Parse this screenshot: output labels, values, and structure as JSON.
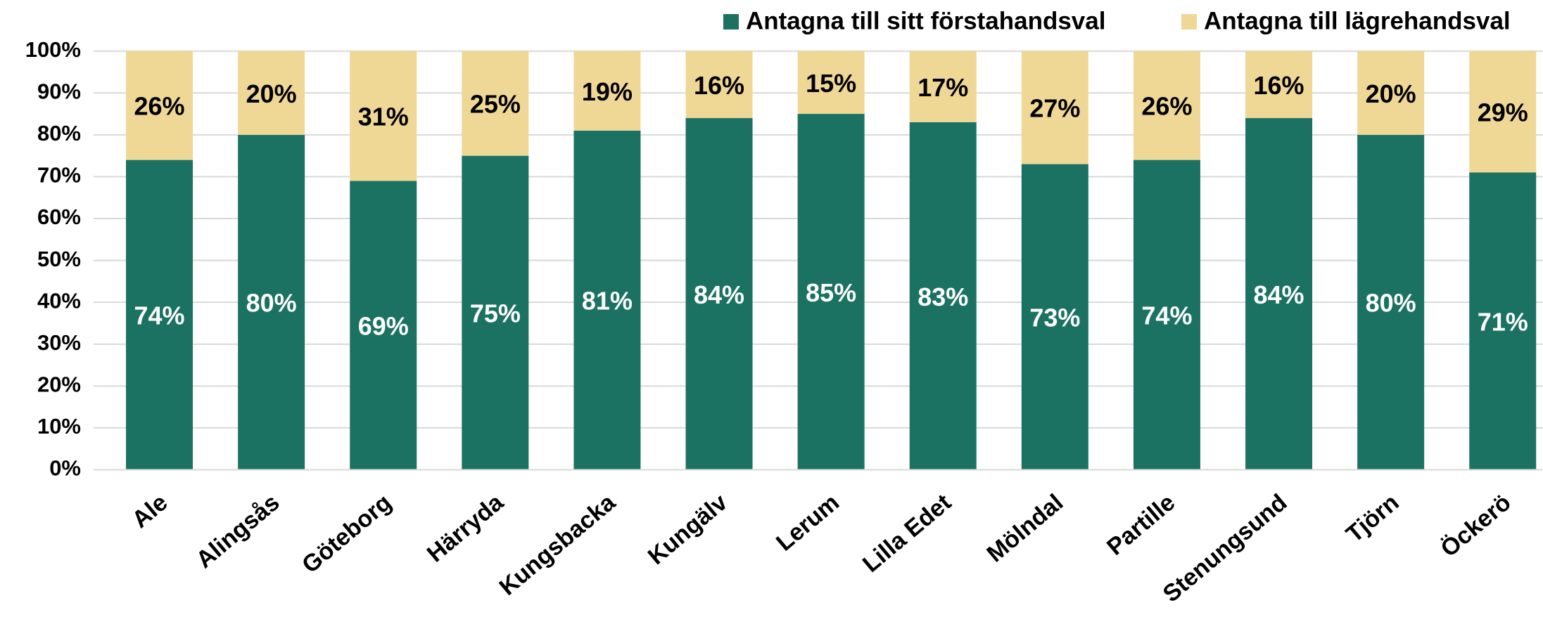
{
  "chart_data": {
    "type": "stacked_bar",
    "categories": [
      "Ale",
      "Alingsås",
      "Göteborg",
      "Härryda",
      "Kungsbacka",
      "Kungälv",
      "Lerum",
      "Lilla Edet",
      "Mölndal",
      "Partille",
      "Stenungsund",
      "Tjörn",
      "Öckerö"
    ],
    "series": [
      {
        "name": "Antagna till sitt förstahandsval",
        "color": "#1c7262",
        "values": [
          74,
          80,
          69,
          75,
          81,
          84,
          85,
          83,
          73,
          74,
          84,
          80,
          71
        ],
        "value_labels": [
          "74%",
          "80%",
          "69%",
          "75%",
          "81%",
          "84%",
          "85%",
          "83%",
          "73%",
          "74%",
          "84%",
          "80%",
          "71%"
        ]
      },
      {
        "name": "Antagna till lägrehandsval",
        "color": "#efd796",
        "values": [
          26,
          20,
          31,
          25,
          19,
          16,
          15,
          17,
          27,
          26,
          16,
          20,
          29
        ],
        "value_labels": [
          "26%",
          "20%",
          "31%",
          "25%",
          "19%",
          "16%",
          "15%",
          "17%",
          "27%",
          "26%",
          "16%",
          "20%",
          "29%"
        ]
      }
    ],
    "ylim": [
      0,
      100
    ],
    "yticks": [
      {
        "value": 0,
        "label": "0%"
      },
      {
        "value": 10,
        "label": "10%"
      },
      {
        "value": 20,
        "label": "20%"
      },
      {
        "value": 30,
        "label": "30%"
      },
      {
        "value": 40,
        "label": "40%"
      },
      {
        "value": 50,
        "label": "50%"
      },
      {
        "value": 60,
        "label": "60%"
      },
      {
        "value": 70,
        "label": "70%"
      },
      {
        "value": 80,
        "label": "80%"
      },
      {
        "value": 90,
        "label": "90%"
      },
      {
        "value": 100,
        "label": "100%"
      }
    ],
    "grid": true,
    "legend": "top"
  }
}
